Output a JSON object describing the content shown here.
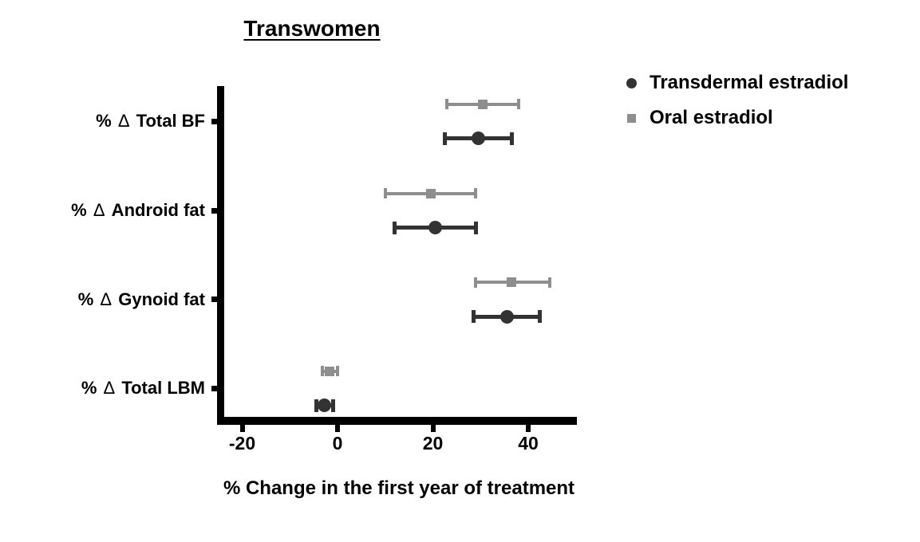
{
  "chart_data": {
    "type": "scatter",
    "subtype": "horizontal dot plot with error bars (forest-style)",
    "title": "Transwomen",
    "xlabel": "% Change in the first year of treatment",
    "categories": [
      "% Δ Total BF",
      "% Δ Android fat",
      "% Δ Gynoid fat",
      "% Δ Total LBM"
    ],
    "xticks": [
      -20,
      0,
      20,
      40
    ],
    "xlim": [
      -25.5,
      50
    ],
    "grid": false,
    "legend_position": "top-right",
    "axis_color": "#000000",
    "series": [
      {
        "name": "Transdermal estradiol",
        "marker": "circle",
        "color": "#333333",
        "values": [
          29.5,
          20.5,
          35.5,
          -2.8
        ],
        "ci_low": [
          22.5,
          12,
          28.5,
          -4.5
        ],
        "ci_high": [
          36.5,
          29,
          42.5,
          -1
        ]
      },
      {
        "name": "Oral estradiol",
        "marker": "square",
        "color": "#8e8e8e",
        "values": [
          30.5,
          19.5,
          36.5,
          -1.6
        ],
        "ci_low": [
          23,
          10,
          29,
          -3.2
        ],
        "ci_high": [
          38,
          29,
          44.5,
          0
        ]
      }
    ]
  }
}
